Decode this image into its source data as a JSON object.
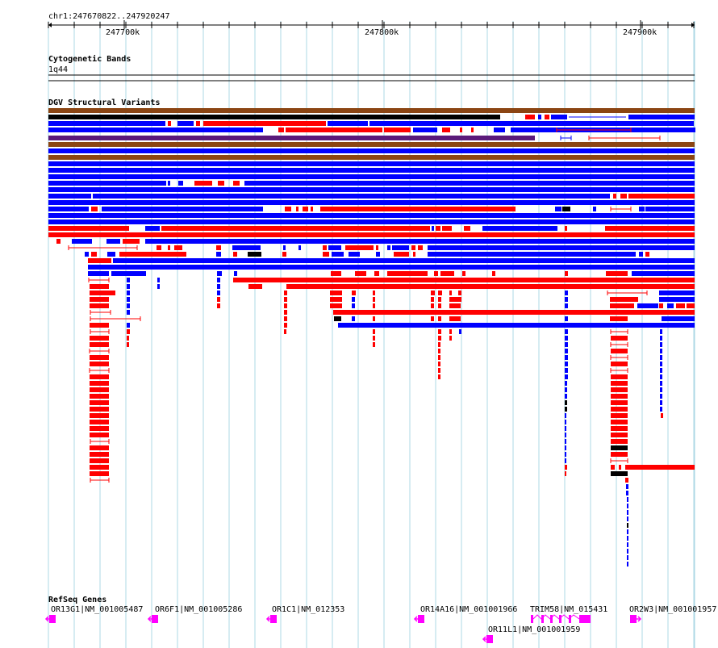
{
  "ruler": {
    "region": "chr1:247670822..247920247",
    "ticks": [
      "247700k",
      "247800k",
      "247900k"
    ]
  },
  "tracks": {
    "cytogenetic": {
      "title": "Cytogenetic Bands",
      "band": "1q44"
    },
    "dgv": {
      "title": "DGV Structural Variants"
    },
    "refseq": {
      "title": "RefSeq Genes"
    }
  },
  "genes": [
    {
      "label": "OR13G1|NM_001005487",
      "strand": "minus"
    },
    {
      "label": "OR6F1|NM_001005286",
      "strand": "minus"
    },
    {
      "label": "OR1C1|NM_012353",
      "strand": "minus"
    },
    {
      "label": "OR14A16|NM_001001966",
      "strand": "minus"
    },
    {
      "label": "TRIM58|NM_015431",
      "strand": "plus"
    },
    {
      "label": "OR11L1|NM_001001959",
      "strand": "minus"
    },
    {
      "label": "OR2W3|NM_001001957",
      "strand": "plus"
    }
  ],
  "colors": {
    "loss": "#ff0000",
    "gain": "#0000ff",
    "complex": "#000000",
    "inversion": "#8b4513",
    "other": "#5a1a7a",
    "gene": "#ff00ff",
    "grid": "#add8e6"
  }
}
